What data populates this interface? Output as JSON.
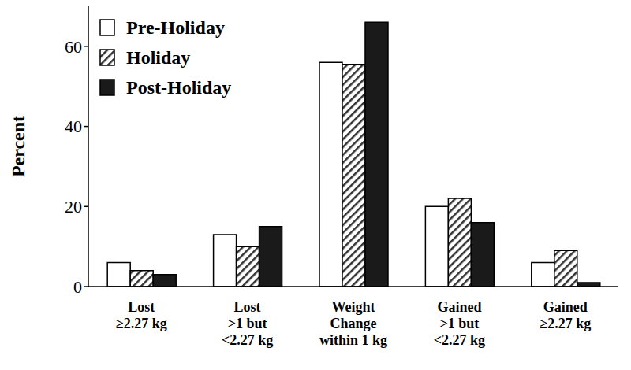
{
  "chart_data": {
    "type": "bar",
    "ylabel": "Percent",
    "categories": [
      "Lost\n≥2.27 kg",
      "Lost\n>1 but\n<2.27 kg",
      "Weight\nChange\nwithin 1 kg",
      "Gained\n>1 but\n<2.27 kg",
      "Gained\n≥2.27 kg"
    ],
    "series": [
      {
        "name": "Pre-Holiday",
        "color": "#ffffff",
        "values": [
          6,
          13,
          56,
          20,
          6
        ]
      },
      {
        "name": "Holiday",
        "color": "#333333",
        "values": [
          4,
          10,
          55.5,
          22,
          9
        ]
      },
      {
        "name": "Post-Holiday",
        "color": "#1a1a1a",
        "values": [
          3,
          15,
          66,
          16,
          1
        ]
      }
    ],
    "ylim": [
      0,
      70
    ],
    "yticks": [
      0,
      20,
      40,
      60
    ],
    "grid": false,
    "legend": "upper left"
  }
}
